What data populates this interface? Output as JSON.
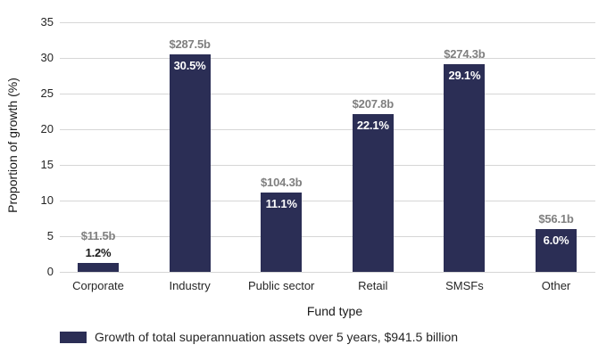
{
  "chart_data": {
    "type": "bar",
    "title": "",
    "xlabel": "Fund type",
    "ylabel": "Proportion of growth (%)",
    "ylim": [
      0,
      35
    ],
    "ytick_step": 5,
    "yticks": [
      0,
      5,
      10,
      15,
      20,
      25,
      30,
      35
    ],
    "grid": true,
    "legend_position": "bottom-left",
    "categories": [
      "Corporate",
      "Industry",
      "Public sector",
      "Retail",
      "SMSFs",
      "Other"
    ],
    "series": [
      {
        "name": "Growth of total superannuation assets over 5 years, $941.5 billion",
        "values": [
          1.2,
          30.5,
          11.1,
          22.1,
          29.1,
          6.0
        ],
        "percent_labels": [
          "1.2%",
          "30.5%",
          "11.1%",
          "22.1%",
          "29.1%",
          "6.0%"
        ],
        "amount_labels": [
          "$11.5b",
          "$287.5b",
          "$104.3b",
          "$207.8b",
          "$274.3b",
          "$56.1b"
        ]
      }
    ],
    "colors": {
      "bar": "#2b2e55",
      "gridline": "#d6d6d6",
      "amount_label": "#7f7f7f",
      "percent_label_inside": "#ffffff",
      "percent_label_outside": "#1a1a1a",
      "axis_text": "#262626"
    }
  }
}
